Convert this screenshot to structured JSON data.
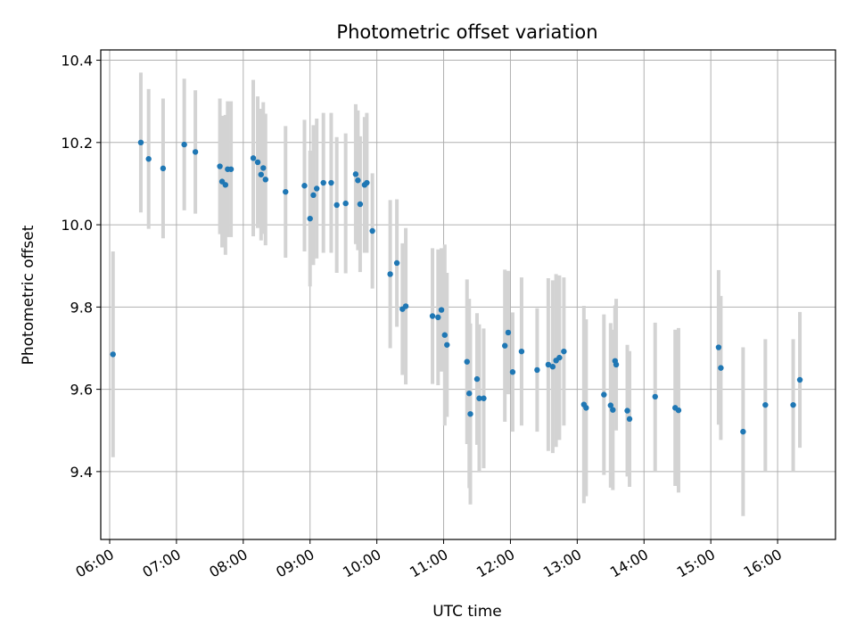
{
  "chart_data": {
    "type": "scatter",
    "title": "Photometric offset variation",
    "xlabel": "UTC time",
    "ylabel": "Photometric offset",
    "x_ticks": [
      "06:00",
      "07:00",
      "08:00",
      "09:00",
      "10:00",
      "11:00",
      "12:00",
      "13:00",
      "14:00",
      "15:00",
      "16:00"
    ],
    "y_ticks": [
      "9.4",
      "9.6",
      "9.8",
      "10.0",
      "10.2",
      "10.4"
    ],
    "xlim": [
      "05:52",
      "16:52"
    ],
    "ylim": [
      9.235,
      10.425
    ],
    "grid": true,
    "colors": {
      "point": "#1f77b4",
      "errorbar": "#d3d3d3",
      "grid": "#b0b0b0"
    },
    "series": [
      {
        "x": [
          "06:03",
          "06:28",
          "06:35",
          "06:48",
          "07:07",
          "07:17",
          "07:39",
          "07:41",
          "07:44",
          "07:46",
          "07:49",
          "08:09",
          "08:13",
          "08:16",
          "08:18",
          "08:20",
          "08:38",
          "08:55",
          "09:00",
          "09:03",
          "09:06",
          "09:12",
          "09:19",
          "09:24",
          "09:32",
          "09:41",
          "09:43",
          "09:45",
          "09:49",
          "09:51",
          "09:56",
          "10:12",
          "10:18",
          "10:23",
          "10:26",
          "10:50",
          "10:55",
          "10:58",
          "11:01",
          "11:03",
          "11:21",
          "11:23",
          "11:24",
          "11:30",
          "11:32",
          "11:36",
          "11:55",
          "11:58",
          "12:02",
          "12:10",
          "12:24",
          "12:34",
          "12:38",
          "12:41",
          "12:44",
          "12:48",
          "13:06",
          "13:08",
          "13:24",
          "13:30",
          "13:32",
          "13:34",
          "13:35",
          "13:45",
          "13:47",
          "14:10",
          "14:28",
          "14:31",
          "15:07",
          "15:09",
          "15:29",
          "15:49",
          "16:14",
          "16:20"
        ],
        "y": [
          9.685,
          10.2,
          10.16,
          10.137,
          10.195,
          10.177,
          10.142,
          10.105,
          10.097,
          10.135,
          10.135,
          10.162,
          10.152,
          10.122,
          10.138,
          10.11,
          10.08,
          10.095,
          10.015,
          10.072,
          10.088,
          10.102,
          10.102,
          10.048,
          10.052,
          10.123,
          10.108,
          10.05,
          10.097,
          10.102,
          9.985,
          9.88,
          9.907,
          9.795,
          9.802,
          9.778,
          9.775,
          9.793,
          9.732,
          9.708,
          9.667,
          9.59,
          9.54,
          9.625,
          9.578,
          9.578,
          9.706,
          9.738,
          9.642,
          9.692,
          9.647,
          9.66,
          9.655,
          9.67,
          9.677,
          9.692,
          9.563,
          9.555,
          9.587,
          9.561,
          9.55,
          9.669,
          9.66,
          9.548,
          9.528,
          9.582,
          9.555,
          9.549,
          9.702,
          9.652,
          9.497,
          9.562,
          9.562,
          9.623
        ],
        "err": [
          0.25,
          0.17,
          0.17,
          0.17,
          0.16,
          0.15,
          0.165,
          0.16,
          0.17,
          0.165,
          0.165,
          0.19,
          0.16,
          0.16,
          0.16,
          0.16,
          0.16,
          0.16,
          0.165,
          0.17,
          0.17,
          0.17,
          0.17,
          0.165,
          0.17,
          0.17,
          0.17,
          0.165,
          0.165,
          0.17,
          0.14,
          0.18,
          0.155,
          0.16,
          0.19,
          0.165,
          0.165,
          0.15,
          0.22,
          0.175,
          0.2,
          0.23,
          0.22,
          0.16,
          0.18,
          0.17,
          0.185,
          0.15,
          0.145,
          0.18,
          0.15,
          0.21,
          0.21,
          0.21,
          0.2,
          0.18,
          0.24,
          0.215,
          0.195,
          0.2,
          0.195,
          0.135,
          0.16,
          0.16,
          0.165,
          0.18,
          0.19,
          0.2,
          0.188,
          0.175,
          0.205,
          0.16,
          0.16,
          0.165
        ]
      }
    ]
  }
}
